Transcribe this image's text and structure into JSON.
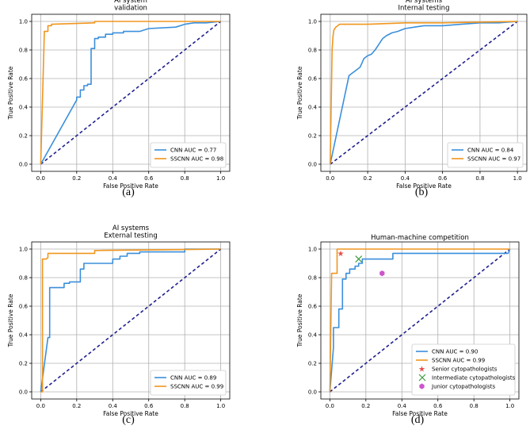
{
  "colors": {
    "cnn": "#3b8fdc",
    "sscnn": "#f0961e",
    "chance": "#1f1f8f",
    "senior": "#e8504a",
    "intermediate": "#3d9a3d",
    "junior": "#cc55cc"
  },
  "chart_data": [
    {
      "id": "a",
      "type": "line",
      "title": [
        "AI system",
        "validation"
      ],
      "xlabel": "False Positive Rate",
      "ylabel": "True Positive Rate",
      "xlim": [
        0,
        1
      ],
      "ylim": [
        0,
        1
      ],
      "xticks": [
        "0.0",
        "0.2",
        "0.4",
        "0.6",
        "0.8",
        "1.0"
      ],
      "yticks": [
        "0.0",
        "0.2",
        "0.4",
        "0.6",
        "0.8",
        "1.0"
      ],
      "caption": "(a)",
      "series": [
        {
          "name": "CNN AUC = 0.77",
          "key": "cnn",
          "x": [
            0,
            0.2,
            0.2,
            0.22,
            0.22,
            0.24,
            0.24,
            0.26,
            0.26,
            0.28,
            0.28,
            0.3,
            0.3,
            0.32,
            0.32,
            0.36,
            0.36,
            0.4,
            0.4,
            0.46,
            0.46,
            0.55,
            0.6,
            0.75,
            0.8,
            0.85,
            0.92,
            1.0
          ],
          "y": [
            0,
            0.45,
            0.47,
            0.47,
            0.52,
            0.52,
            0.55,
            0.55,
            0.56,
            0.56,
            0.81,
            0.81,
            0.88,
            0.88,
            0.89,
            0.89,
            0.91,
            0.91,
            0.92,
            0.92,
            0.93,
            0.93,
            0.95,
            0.96,
            0.98,
            0.99,
            0.99,
            1.0
          ]
        },
        {
          "name": "SSCNN AUC = 0.98",
          "key": "sscnn",
          "x": [
            0,
            0.02,
            0.02,
            0.04,
            0.04,
            0.06,
            0.06,
            0.3,
            0.3,
            1.0
          ],
          "y": [
            0,
            0.91,
            0.93,
            0.93,
            0.97,
            0.97,
            0.98,
            0.99,
            1.0,
            1.0
          ]
        }
      ],
      "legend": "lower right"
    },
    {
      "id": "b",
      "type": "line",
      "title": [
        "AI systems",
        "Internal testing"
      ],
      "xlabel": "False Positive Rate",
      "ylabel": "True Positive Rate",
      "xlim": [
        0,
        1
      ],
      "ylim": [
        0,
        1
      ],
      "xticks": [
        "0.0",
        "0.2",
        "0.4",
        "0.6",
        "0.8",
        "1.0"
      ],
      "yticks": [
        "0.0",
        "0.2",
        "0.4",
        "0.6",
        "0.8",
        "1.0"
      ],
      "caption": "(b)",
      "series": [
        {
          "name": "CNN AUC = 0.84",
          "key": "cnn",
          "x": [
            0,
            0.1,
            0.12,
            0.14,
            0.16,
            0.18,
            0.2,
            0.22,
            0.24,
            0.26,
            0.28,
            0.3,
            0.33,
            0.36,
            0.4,
            0.45,
            0.5,
            0.6,
            0.7,
            0.8,
            0.9,
            1.0
          ],
          "y": [
            0,
            0.62,
            0.64,
            0.66,
            0.68,
            0.74,
            0.76,
            0.77,
            0.8,
            0.84,
            0.88,
            0.9,
            0.92,
            0.93,
            0.95,
            0.96,
            0.97,
            0.97,
            0.98,
            0.99,
            0.99,
            1.0
          ],
          "step": true
        },
        {
          "name": "SSCNN AUC = 0.97",
          "key": "sscnn",
          "x": [
            0,
            0.01,
            0.015,
            0.02,
            0.03,
            0.05,
            0.2,
            0.4,
            0.6,
            1.0
          ],
          "y": [
            0,
            0.8,
            0.9,
            0.94,
            0.96,
            0.98,
            0.98,
            0.99,
            0.99,
            1.0
          ]
        }
      ],
      "legend": "lower right"
    },
    {
      "id": "c",
      "type": "line",
      "title": [
        "AI systems",
        "External testing"
      ],
      "xlabel": "False Positive Rate",
      "ylabel": "True Positive Rate",
      "xlim": [
        0,
        1
      ],
      "ylim": [
        0,
        1
      ],
      "xticks": [
        "0.0",
        "0.2",
        "0.4",
        "0.6",
        "0.8",
        "1.0"
      ],
      "yticks": [
        "0.0",
        "0.2",
        "0.4",
        "0.6",
        "0.8",
        "1.0"
      ],
      "caption": "(c)",
      "series": [
        {
          "name": "CNN AUC = 0.89",
          "key": "cnn",
          "x": [
            0,
            0.04,
            0.05,
            0.05,
            0.13,
            0.13,
            0.16,
            0.16,
            0.19,
            0.19,
            0.22,
            0.22,
            0.24,
            0.24,
            0.4,
            0.4,
            0.44,
            0.44,
            0.48,
            0.48,
            0.55,
            0.55,
            0.8,
            0.8,
            1.0
          ],
          "y": [
            0,
            0.38,
            0.38,
            0.73,
            0.73,
            0.76,
            0.76,
            0.77,
            0.77,
            0.77,
            0.77,
            0.86,
            0.86,
            0.9,
            0.9,
            0.93,
            0.93,
            0.95,
            0.95,
            0.97,
            0.97,
            0.98,
            0.98,
            1.0,
            1.0
          ]
        },
        {
          "name": "SSCNN AUC = 0.99",
          "key": "sscnn",
          "x": [
            0,
            0.01,
            0.01,
            0.03,
            0.04,
            0.04,
            0.3,
            0.3,
            1.0
          ],
          "y": [
            0,
            0.0,
            0.93,
            0.93,
            0.94,
            0.97,
            0.97,
            0.99,
            1.0
          ]
        }
      ],
      "legend": "lower right"
    },
    {
      "id": "d",
      "type": "line",
      "title": [
        "Human-machine competition"
      ],
      "xlabel": "False Positive Rate",
      "ylabel": "True Positive Rate",
      "xlim": [
        0,
        1
      ],
      "ylim": [
        0,
        1
      ],
      "xticks": [
        "0.0",
        "0.2",
        "0.4",
        "0.6",
        "0.8",
        "1.0"
      ],
      "yticks": [
        "0.0",
        "0.2",
        "0.4",
        "0.6",
        "0.8",
        "1.0"
      ],
      "caption": "(d)",
      "series": [
        {
          "name": "CNN AUC = 0.90",
          "key": "cnn",
          "x": [
            0,
            0.02,
            0.02,
            0.05,
            0.05,
            0.07,
            0.07,
            0.09,
            0.09,
            0.11,
            0.11,
            0.14,
            0.14,
            0.16,
            0.16,
            0.18,
            0.18,
            0.21,
            0.21,
            0.35,
            0.35,
            0.99,
            1.0
          ],
          "y": [
            0,
            0.31,
            0.45,
            0.45,
            0.58,
            0.58,
            0.79,
            0.79,
            0.83,
            0.83,
            0.86,
            0.86,
            0.88,
            0.88,
            0.9,
            0.9,
            0.93,
            0.93,
            0.93,
            0.93,
            0.97,
            0.97,
            1.0
          ]
        },
        {
          "name": "SSCNN AUC = 0.99",
          "key": "sscnn",
          "x": [
            0,
            0.01,
            0.01,
            0.04,
            0.04,
            1.0
          ],
          "y": [
            0,
            0.83,
            0.83,
            0.83,
            1.0,
            1.0
          ]
        }
      ],
      "points": [
        {
          "name": "Senior cytopathologists",
          "key": "senior",
          "marker": "star",
          "x": 0.06,
          "y": 0.97
        },
        {
          "name": "Intermediate cytopathologists",
          "key": "intermediate",
          "marker": "x",
          "x": 0.16,
          "y": 0.93
        },
        {
          "name": "Junior cytopathologists",
          "key": "junior",
          "marker": "hexagon",
          "x": 0.29,
          "y": 0.83
        }
      ],
      "legend": "lower right"
    }
  ]
}
